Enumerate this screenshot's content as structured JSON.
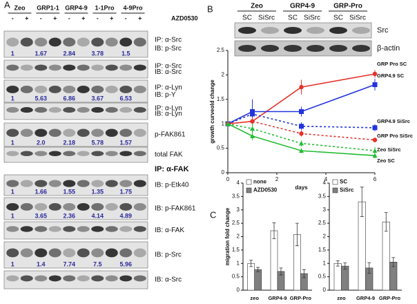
{
  "panel_labels": [
    "A",
    "B",
    "C"
  ],
  "panel_a": {
    "lanes": [
      "Zeo",
      "GRP1-1",
      "GRP4-9",
      "1-1Pro",
      "4-9Pro"
    ],
    "treatment": [
      "-",
      "+"
    ],
    "drug": "AZD0530",
    "section_title": "IP: α-FAK",
    "blots": [
      {
        "labels": [
          "IP: α-Src",
          "IB: p-Src"
        ],
        "quant": [
          "1",
          "1.67",
          "2.84",
          "3.78",
          "1.5"
        ]
      },
      {
        "labels": [
          "IP: α-Src",
          "IB: α-Src"
        ]
      },
      {
        "labels": [
          "IP: α-Lyn",
          "IB: p-Y"
        ],
        "quant": [
          "1",
          "5.63",
          "6.86",
          "3.67",
          "6.53"
        ]
      },
      {
        "labels": [
          "IP: α-Lyn",
          "IB: α-Lyn"
        ]
      },
      {
        "labels": [
          "p-FAK861"
        ],
        "quant": [
          "1",
          "2.0",
          "2.18",
          "5.78",
          "1.57"
        ]
      },
      {
        "labels": [
          "total FAK"
        ]
      },
      {
        "labels": [
          "IB: p-Etk40"
        ],
        "quant": [
          "1",
          "1.66",
          "1.55",
          "1.35",
          "1.75"
        ]
      },
      {
        "labels": [
          "IB: p-FAK861"
        ],
        "quant": [
          "1",
          "3.65",
          "2.36",
          "4.14",
          "4.89"
        ]
      },
      {
        "labels": [
          "IB: α-FAK"
        ]
      },
      {
        "labels": [
          "IB: p-Src"
        ],
        "quant": [
          "1",
          "1.4",
          "7.74",
          "7.5",
          "5.96"
        ]
      },
      {
        "labels": [
          "IB: α-Src"
        ]
      }
    ]
  },
  "panel_b_blot": {
    "groups": [
      "Zeo",
      "GRP4-9",
      "GRP-Pro"
    ],
    "lanes": [
      "SC",
      "SiSrc"
    ],
    "rows": [
      "Src",
      "β-actin"
    ]
  },
  "chart_data": [
    {
      "type": "line",
      "y_label": "growth curveold change",
      "x_label": "days",
      "x": [
        0,
        1,
        3,
        6
      ],
      "xlim": [
        0,
        6
      ],
      "xticks": [
        0,
        2,
        4,
        6
      ],
      "ylim": [
        0,
        2.5
      ],
      "yticks": [
        0,
        0.5,
        1,
        1.5,
        2,
        2.5
      ],
      "series": [
        {
          "name": "GRP Pro SC",
          "color": "#e8312a",
          "marker": "circle",
          "dashed": false,
          "values": [
            1,
            1.05,
            1.75,
            2.02
          ],
          "errors": [
            0.05,
            0.1,
            0.15,
            0.08
          ]
        },
        {
          "name": "GRP4.9 SC",
          "color": "#2233dd",
          "marker": "square",
          "dashed": false,
          "values": [
            1,
            1.25,
            1.25,
            1.8
          ],
          "errors": [
            0.05,
            0.25,
            0.1,
            0.12
          ]
        },
        {
          "name": "GRP4.9 SiSrc",
          "color": "#2233dd",
          "marker": "square",
          "dashed": true,
          "values": [
            1,
            1.2,
            0.95,
            0.92
          ],
          "errors": [
            0.05,
            0.1,
            0.08,
            0.07
          ]
        },
        {
          "name": "GRP Pro SiSrc",
          "color": "#e8312a",
          "marker": "circle",
          "dashed": true,
          "values": [
            1,
            1.05,
            0.8,
            0.67
          ],
          "errors": [
            0.05,
            0.08,
            0.06,
            0.05
          ]
        },
        {
          "name": "Zeo SiSrc",
          "color": "#22bb33",
          "marker": "triangle",
          "dashed": true,
          "values": [
            1,
            0.9,
            0.6,
            0.45
          ],
          "errors": [
            0.05,
            0.1,
            0.06,
            0.08
          ]
        },
        {
          "name": "Zeo SC",
          "color": "#22bb33",
          "marker": "triangle",
          "dashed": false,
          "values": [
            1,
            0.75,
            0.45,
            0.35
          ],
          "errors": [
            0.05,
            0.08,
            0.05,
            0.05
          ]
        }
      ]
    },
    {
      "type": "bar",
      "y_label": "migration fold change",
      "categories": [
        "zeo",
        "GRP4-9",
        "GRP-Pro"
      ],
      "ylim": [
        0,
        4
      ],
      "yticks": [
        0,
        0.5,
        1,
        1.5,
        2,
        2.5,
        3,
        3.5,
        4
      ],
      "series": [
        {
          "name": "none",
          "color": "#ffffff",
          "values": [
            1,
            2.22,
            2.08
          ],
          "errors": [
            0.12,
            0.3,
            0.42
          ]
        },
        {
          "name": "AZD0530",
          "color": "#808080",
          "values": [
            0.77,
            0.7,
            0.62
          ],
          "errors": [
            0.08,
            0.13,
            0.15
          ]
        }
      ]
    },
    {
      "type": "bar",
      "categories": [
        "zeo",
        "GRP4-9",
        "GRP-Pro"
      ],
      "ylim": [
        0,
        4
      ],
      "yticks": [
        0,
        0.5,
        1,
        1.5,
        2,
        2.5,
        3,
        3.5,
        4
      ],
      "series": [
        {
          "name": "SC",
          "color": "#ffffff",
          "values": [
            1,
            3.3,
            2.55
          ],
          "errors": [
            0.1,
            0.55,
            0.35
          ]
        },
        {
          "name": "SiSrc",
          "color": "#808080",
          "values": [
            0.9,
            0.83,
            1.05
          ],
          "errors": [
            0.12,
            0.2,
            0.17
          ]
        }
      ]
    }
  ]
}
